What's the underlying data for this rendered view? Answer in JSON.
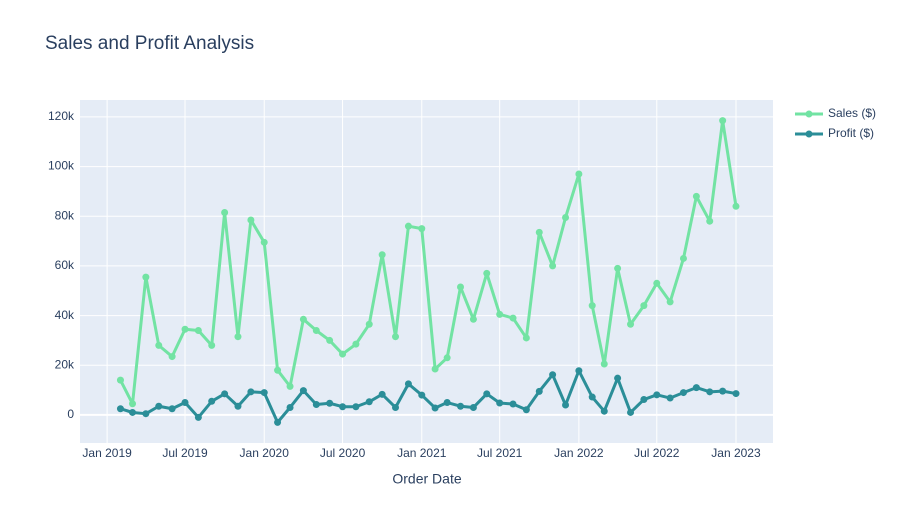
{
  "chart_data": {
    "type": "line",
    "title": "Sales and Profit Analysis",
    "x_label": "Order Date",
    "x": [
      "2019-02",
      "2019-03",
      "2019-04",
      "2019-05",
      "2019-06",
      "2019-07",
      "2019-08",
      "2019-09",
      "2019-10",
      "2019-11",
      "2019-12",
      "2020-01",
      "2020-02",
      "2020-03",
      "2020-04",
      "2020-05",
      "2020-06",
      "2020-07",
      "2020-08",
      "2020-09",
      "2020-10",
      "2020-11",
      "2020-12",
      "2021-01",
      "2021-02",
      "2021-03",
      "2021-04",
      "2021-05",
      "2021-06",
      "2021-07",
      "2021-08",
      "2021-09",
      "2021-10",
      "2021-11",
      "2021-12",
      "2022-01",
      "2022-02",
      "2022-03",
      "2022-04",
      "2022-05",
      "2022-06",
      "2022-07",
      "2022-08",
      "2022-09",
      "2022-10",
      "2022-11",
      "2022-12",
      "2023-01"
    ],
    "series": [
      {
        "name": "Sales ($)",
        "color": "#72e3a3",
        "values": [
          14000,
          4500,
          55500,
          28000,
          23500,
          34500,
          34000,
          28000,
          81500,
          31500,
          78500,
          69500,
          18000,
          11500,
          38500,
          34000,
          30000,
          24500,
          28500,
          36500,
          64500,
          31500,
          76000,
          75000,
          18500,
          23000,
          51500,
          38500,
          57000,
          40500,
          39000,
          31000,
          73500,
          60000,
          79500,
          97000,
          44000,
          20500,
          59000,
          36500,
          44000,
          53000,
          45500,
          63000,
          88000,
          78000,
          118500,
          84000
        ]
      },
      {
        "name": "Profit ($)",
        "color": "#2b8e98",
        "values": [
          2500,
          1000,
          500,
          3500,
          2500,
          5000,
          -1000,
          5500,
          8500,
          3500,
          9300,
          9000,
          -3000,
          3000,
          9800,
          4200,
          4700,
          3300,
          3300,
          5300,
          8300,
          3000,
          12500,
          8000,
          2800,
          5000,
          3500,
          3000,
          8500,
          4800,
          4400,
          2100,
          9500,
          16200,
          4000,
          17800,
          7200,
          1500,
          14800,
          1000,
          6200,
          8100,
          6800,
          9000,
          11000,
          9300,
          9600,
          8600
        ]
      }
    ],
    "xlim": [
      "2018-10-30",
      "2023-03-28"
    ],
    "xticks": [
      {
        "value": "2019-01",
        "label": "Jan 2019"
      },
      {
        "value": "2019-07",
        "label": "Jul 2019"
      },
      {
        "value": "2020-01",
        "label": "Jan 2020"
      },
      {
        "value": "2020-07",
        "label": "Jul 2020"
      },
      {
        "value": "2021-01",
        "label": "Jan 2021"
      },
      {
        "value": "2021-07",
        "label": "Jul 2021"
      },
      {
        "value": "2022-01",
        "label": "Jan 2022"
      },
      {
        "value": "2022-07",
        "label": "Jul 2022"
      },
      {
        "value": "2023-01",
        "label": "Jan 2023"
      }
    ],
    "ylim": [
      -11300,
      126800
    ],
    "yticks": [
      0,
      {
        "value": 20000,
        "label": "20k"
      },
      {
        "value": 40000,
        "label": "40k"
      },
      {
        "value": 60000,
        "label": "60k"
      },
      {
        "value": 80000,
        "label": "80k"
      },
      {
        "value": 100000,
        "label": "100k"
      },
      {
        "value": 120000,
        "label": "120k"
      }
    ],
    "grid": true,
    "legend": "right"
  }
}
